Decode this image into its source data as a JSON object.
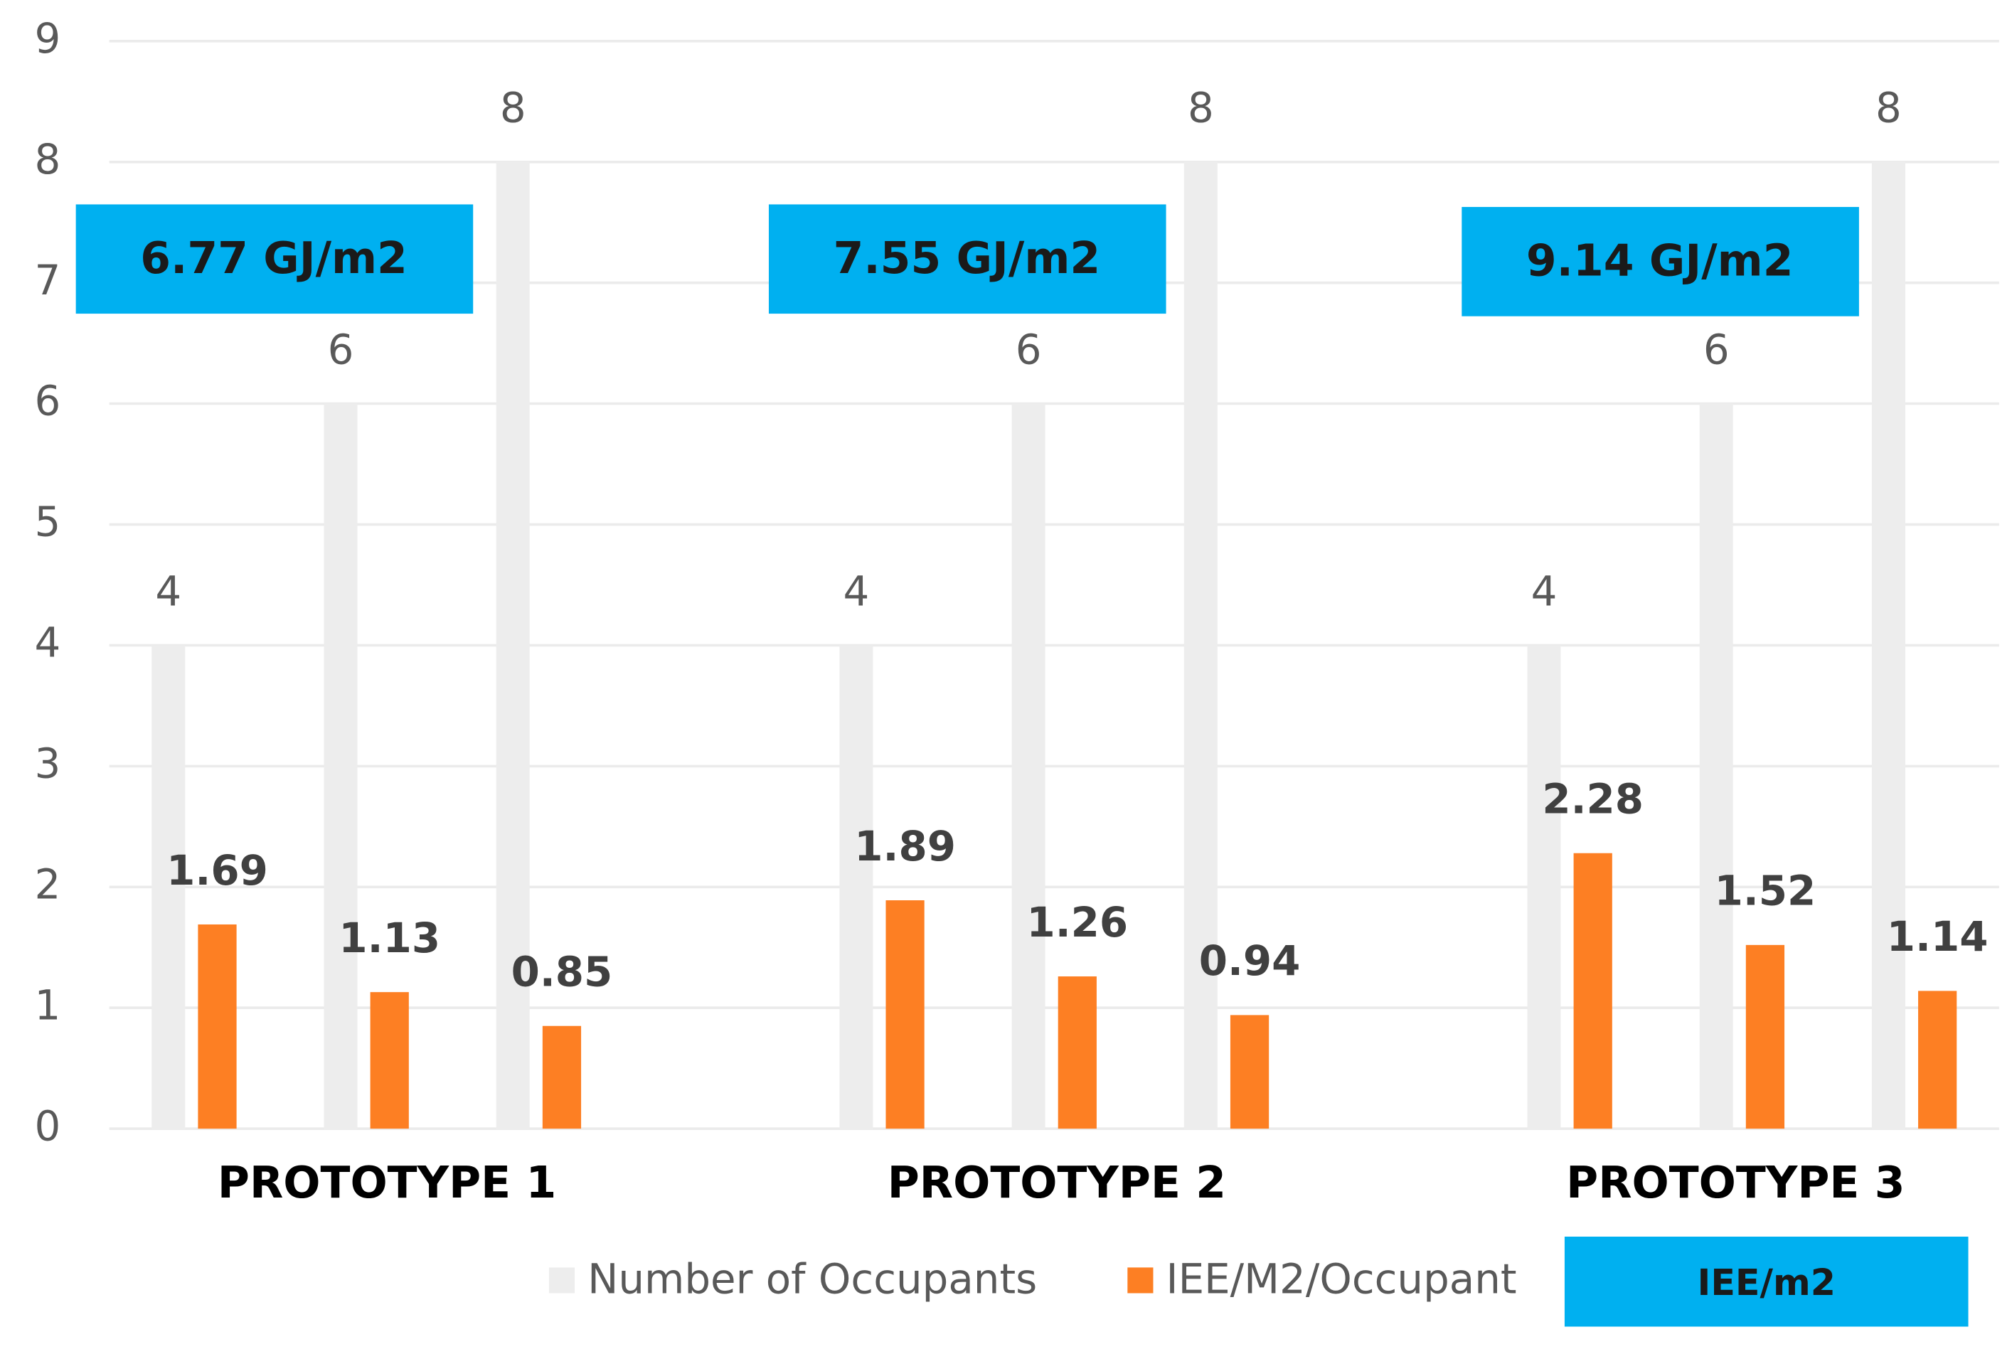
{
  "chart_data": {
    "type": "bar",
    "groups": [
      "PROTOTYPE 1",
      "PROTOTYPE 2",
      "PROTOTYPE 3"
    ],
    "series": [
      {
        "name": "Number of Occupants",
        "color": "#ededed",
        "values": [
          4,
          6,
          8,
          4,
          6,
          8,
          4,
          6,
          8
        ]
      },
      {
        "name": "IEE/M2/Occupant",
        "color": "#fd7f23",
        "values": [
          1.69,
          1.13,
          0.85,
          1.89,
          1.26,
          0.94,
          2.28,
          1.52,
          1.14
        ]
      }
    ],
    "annotations": [
      "6.77 GJ/m2",
      "7.55 GJ/m2",
      "9.14 GJ/m2"
    ],
    "annotation_legend": "IEE/m2",
    "annotation_color": "#00b0f0",
    "ylim": [
      0,
      9
    ],
    "yticks": [
      0,
      1,
      2,
      3,
      4,
      5,
      6,
      7,
      8,
      9
    ],
    "grid": true
  }
}
